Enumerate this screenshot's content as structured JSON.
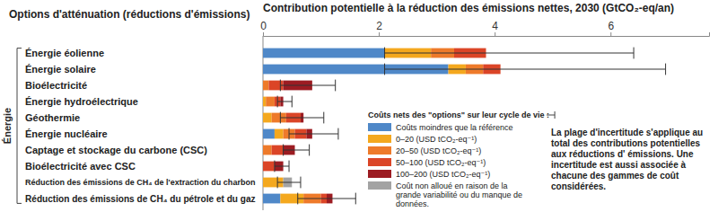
{
  "chart_data": {
    "type": "bar",
    "orientation": "horizontal",
    "stacked": true,
    "grid": false,
    "legend": "bottom",
    "title": "Contribution potentielle à la réduction des émissions nettes, 2030 (GtCO₂-eq/an)",
    "y_label": "Options d'atténuation (réductions d'émissions)",
    "group_label": "Énergie",
    "legend_title": "Coûts nets des \"options\" sur leur cycle de vie :",
    "annotation": "La plage d'incertitude s'applique au total des contributions potentielles aux réductions d' émissions. Une incertitude est aussi associée à chacune des gammes de coût considérées.",
    "categories": [
      "Énergie éolienne",
      "Énergie solaire",
      "Bioélectricité",
      "Énergie hydroélectrique",
      "Géothermie",
      "Énergie nucléaire",
      "Captage et stockage du carbone (CSC)",
      "Bioélectricité avec CSC",
      "Réduction des émissions de CH₄ de l'extraction du charbon",
      "Réduction des émissions de CH₄ du pétrole et du gaz"
    ],
    "series": [
      {
        "name": "Coûts moindres que la référence",
        "color": "#4f88c8",
        "values": [
          2.1,
          3.2,
          0,
          0,
          0,
          0.2,
          0,
          0,
          0,
          0.3
        ]
      },
      {
        "name": "0–20 (USD tCO₂-eq⁻¹)",
        "color": "#f4a81e",
        "values": [
          0.8,
          0.3,
          0,
          0.05,
          0.15,
          0.15,
          0,
          0,
          0.35,
          0.4
        ]
      },
      {
        "name": "20–50 (USD tCO₂-eq⁻¹)",
        "color": "#ee7a2a",
        "values": [
          0.4,
          0.3,
          0.1,
          0.15,
          0.25,
          0.2,
          0.15,
          0,
          0,
          0.3
        ]
      },
      {
        "name": "50–100 (USD tCO₂-eq⁻¹)",
        "color": "#db4527",
        "values": [
          0.55,
          0.3,
          0.25,
          0.1,
          0.25,
          0.2,
          0.2,
          0.2,
          0,
          0.1
        ]
      },
      {
        "name": "100–200 (USD tCO₂-eq⁻¹)",
        "color": "#9c1c22",
        "values": [
          0,
          0,
          0.5,
          0.05,
          0.05,
          0.1,
          0.2,
          0.15,
          0,
          0.1
        ]
      },
      {
        "name": "Coût non alloué en raison de la grande variabilité ou du manque de données.",
        "color": "#a3a3a3",
        "values": [
          0,
          0,
          0,
          0,
          0,
          0,
          0,
          0,
          0.15,
          0
        ]
      }
    ],
    "errors": [
      [
        2.1,
        6.4
      ],
      [
        2.1,
        6.95
      ],
      [
        0.3,
        1.25
      ],
      [
        0.25,
        0.5
      ],
      [
        0.3,
        1.05
      ],
      [
        0.45,
        1.3
      ],
      [
        0.35,
        0.8
      ],
      [
        0.2,
        0.45
      ],
      [
        0.25,
        0.65
      ],
      [
        0.6,
        1.6
      ]
    ],
    "xlim": [
      0,
      7.7
    ],
    "xticks": [
      0,
      2,
      4,
      6
    ]
  }
}
